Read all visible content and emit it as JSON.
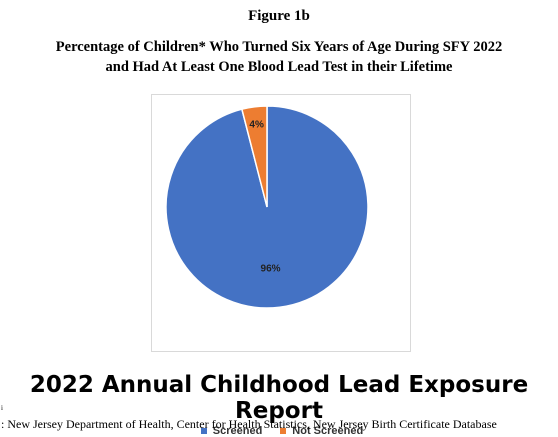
{
  "figure_label": "Figure 1b",
  "title_line1": "Percentage of Children* Who Turned Six Years of Age During SFY 2022",
  "title_line2": "and Had At Least One Blood Lead Test in their Lifetime",
  "report_title": "2022 Annual Childhood Lead Exposure Report",
  "tiny_mark": "i",
  "source": ": New Jersey Department of Health, Center for Health Statistics, New Jersey Birth Certificate Database",
  "colors": {
    "screened": "#4472C4",
    "not_screened": "#ED7D31"
  },
  "chart_data": {
    "type": "pie",
    "title": "",
    "slices": [
      {
        "label": "Screened",
        "value": 96,
        "data_label": "96%",
        "color": "#4472C4"
      },
      {
        "label": "Not Screened",
        "value": 4,
        "data_label": "4%",
        "color": "#ED7D31"
      }
    ],
    "legend_position": "bottom"
  }
}
